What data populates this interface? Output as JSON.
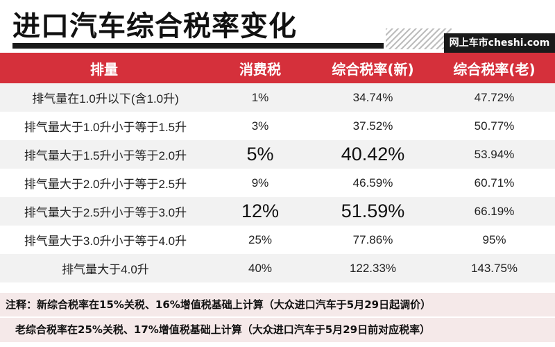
{
  "title": "进口汽车综合税率变化",
  "brand": "网上车市cheshi.com",
  "table": {
    "headers": [
      "排量",
      "消费税",
      "综合税率(新)",
      "综合税率(老)"
    ],
    "rows": [
      {
        "displacement": "排气量在1.0升以下(含1.0升)",
        "consumption_tax": "1%",
        "new_rate": "34.74%",
        "old_rate": "47.72%",
        "highlight": false
      },
      {
        "displacement": "排气量大于1.0升小于等于1.5升",
        "consumption_tax": "3%",
        "new_rate": "37.52%",
        "old_rate": "50.77%",
        "highlight": false
      },
      {
        "displacement": "排气量大于1.5升小于等于2.0升",
        "consumption_tax": "5%",
        "new_rate": "40.42%",
        "old_rate": "53.94%",
        "highlight": true
      },
      {
        "displacement": "排气量大于2.0升小于等于2.5升",
        "consumption_tax": "9%",
        "new_rate": "46.59%",
        "old_rate": "60.71%",
        "highlight": false
      },
      {
        "displacement": "排气量大于2.5升小于等于3.0升",
        "consumption_tax": "12%",
        "new_rate": "51.59%",
        "old_rate": "66.19%",
        "highlight": true
      },
      {
        "displacement": "排气量大于3.0升小于等于4.0升",
        "consumption_tax": "25%",
        "new_rate": "77.86%",
        "old_rate": "95%",
        "highlight": false
      },
      {
        "displacement": "排气量大于4.0升",
        "consumption_tax": "40%",
        "new_rate": "122.33%",
        "old_rate": "143.75%",
        "highlight": false
      }
    ]
  },
  "notes": {
    "note1": "注释：新综合税率在15%关税、16%增值税基础上计算（大众进口汽车于5月29日起调价）",
    "note2": "老综合税率在25%关税、17%增值税基础上计算（大众进口汽车于5月29日前对应税率）"
  },
  "colors": {
    "header_bg": "#d5303b",
    "note_bg": "#f5e9e9",
    "title_bar": "#1a1a1a"
  }
}
